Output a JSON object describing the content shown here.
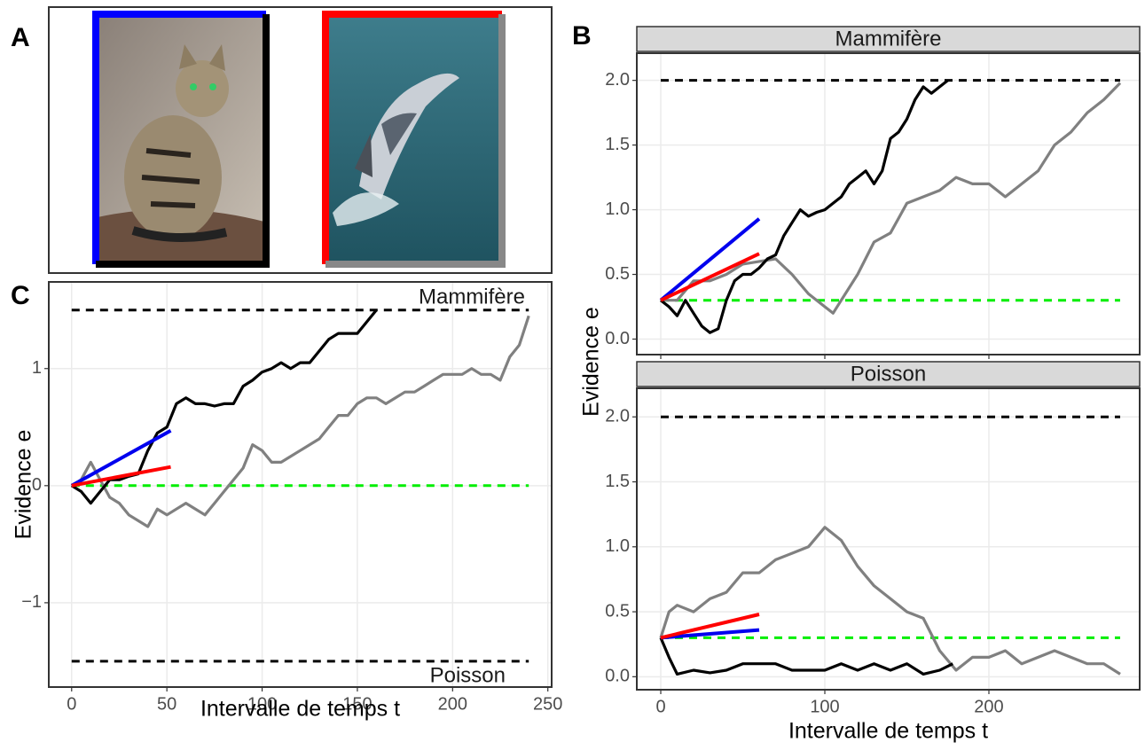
{
  "panel_labels": [
    "A",
    "B",
    "C"
  ],
  "chart_data": [
    {
      "type": "line",
      "y_label": "Evidence e",
      "x_label": "Intervalle de temps t",
      "xlim": [
        -12,
        252
      ],
      "ylim": [
        -1.72,
        1.74
      ],
      "xticks": [
        0,
        50,
        100,
        150,
        200,
        250
      ],
      "yticks": [
        {
          "value": -1,
          "label": "−1"
        },
        0,
        1
      ],
      "grid": true,
      "annotations": [
        "Mammifère",
        "Poisson"
      ],
      "series": [
        {
          "color": "#000000",
          "dash": true,
          "x": [
            0,
            240
          ],
          "values": [
            1.5,
            1.5
          ]
        },
        {
          "color": "#000000",
          "dash": true,
          "x": [
            0,
            240
          ],
          "values": [
            -1.5,
            -1.5
          ]
        },
        {
          "color": "#00ee00",
          "dash": true,
          "x": [
            0,
            240
          ],
          "values": [
            0,
            0
          ]
        },
        {
          "color": "#808080",
          "x": [
            0,
            5,
            10,
            15,
            20,
            25,
            30,
            35,
            40,
            45,
            50,
            55,
            60,
            65,
            70,
            75,
            80,
            85,
            90,
            95,
            100,
            105,
            110,
            115,
            120,
            125,
            130,
            135,
            140,
            145,
            150,
            155,
            160,
            165,
            170,
            175,
            180,
            185,
            190,
            195,
            200,
            205,
            210,
            215,
            220,
            225,
            230,
            235,
            240
          ],
          "values": [
            0,
            0.05,
            0.2,
            0.05,
            -0.1,
            -0.15,
            -0.25,
            -0.3,
            -0.35,
            -0.2,
            -0.25,
            -0.2,
            -0.15,
            -0.2,
            -0.25,
            -0.15,
            -0.05,
            0.05,
            0.15,
            0.35,
            0.3,
            0.2,
            0.2,
            0.25,
            0.3,
            0.35,
            0.4,
            0.5,
            0.6,
            0.6,
            0.7,
            0.75,
            0.75,
            0.7,
            0.75,
            0.8,
            0.8,
            0.85,
            0.9,
            0.95,
            0.95,
            0.95,
            1.0,
            0.95,
            0.95,
            0.9,
            1.1,
            1.2,
            1.45
          ]
        },
        {
          "color": "#000000",
          "x": [
            0,
            5,
            10,
            15,
            20,
            25,
            30,
            35,
            40,
            45,
            50,
            55,
            60,
            65,
            70,
            75,
            80,
            85,
            90,
            95,
            100,
            105,
            110,
            115,
            120,
            125,
            130,
            135,
            140,
            145,
            150,
            155,
            160
          ],
          "values": [
            0,
            -0.05,
            -0.15,
            -0.05,
            0.05,
            0.05,
            0.08,
            0.1,
            0.3,
            0.45,
            0.5,
            0.7,
            0.75,
            0.7,
            0.7,
            0.68,
            0.7,
            0.7,
            0.85,
            0.9,
            0.97,
            1.0,
            1.05,
            1.0,
            1.05,
            1.05,
            1.15,
            1.25,
            1.3,
            1.3,
            1.3,
            1.4,
            1.5
          ]
        },
        {
          "color": "#0000ee",
          "width": 4,
          "x": [
            0,
            52
          ],
          "values": [
            0,
            0.47
          ]
        },
        {
          "color": "#ff0000",
          "width": 4,
          "x": [
            0,
            52
          ],
          "values": [
            0,
            0.16
          ]
        }
      ]
    },
    {
      "type": "line",
      "strip": "Mammifère",
      "y_label": "Evidence e",
      "xlim": [
        -14.6,
        291.9
      ],
      "ylim": [
        -0.12,
        2.21
      ],
      "xticks": [
        0,
        100,
        200
      ],
      "yticks": [
        {
          "value": 0,
          "label": "0.0"
        },
        {
          "value": 0.5,
          "label": "0.5"
        },
        {
          "value": 1,
          "label": "1.0"
        },
        {
          "value": 1.5,
          "label": "1.5"
        },
        {
          "value": 2,
          "label": "2.0"
        }
      ],
      "grid": true,
      "series": [
        {
          "color": "#000000",
          "dash": true,
          "x": [
            0,
            280
          ],
          "values": [
            2,
            2
          ]
        },
        {
          "color": "#00ee00",
          "dash": true,
          "x": [
            0,
            280
          ],
          "values": [
            0.3,
            0.3
          ]
        },
        {
          "color": "#808080",
          "x": [
            0,
            10,
            20,
            30,
            40,
            50,
            60,
            70,
            80,
            90,
            100,
            105,
            110,
            120,
            130,
            140,
            150,
            160,
            170,
            180,
            190,
            200,
            210,
            220,
            230,
            240,
            250,
            260,
            270,
            280
          ],
          "values": [
            0.3,
            0.3,
            0.45,
            0.45,
            0.5,
            0.58,
            0.6,
            0.62,
            0.5,
            0.35,
            0.25,
            0.2,
            0.3,
            0.5,
            0.75,
            0.82,
            1.05,
            1.1,
            1.15,
            1.25,
            1.2,
            1.2,
            1.1,
            1.2,
            1.3,
            1.5,
            1.6,
            1.75,
            1.85,
            1.98
          ]
        },
        {
          "color": "#000000",
          "x": [
            0,
            5,
            10,
            15,
            20,
            25,
            30,
            35,
            40,
            45,
            50,
            55,
            60,
            65,
            70,
            75,
            80,
            85,
            90,
            95,
            100,
            105,
            110,
            115,
            120,
            125,
            130,
            135,
            140,
            145,
            150,
            155,
            160,
            165,
            170,
            175
          ],
          "values": [
            0.3,
            0.25,
            0.18,
            0.3,
            0.2,
            0.1,
            0.05,
            0.08,
            0.3,
            0.45,
            0.5,
            0.5,
            0.55,
            0.62,
            0.65,
            0.8,
            0.9,
            1.0,
            0.95,
            0.98,
            1.0,
            1.05,
            1.1,
            1.2,
            1.25,
            1.3,
            1.2,
            1.3,
            1.55,
            1.6,
            1.7,
            1.85,
            1.95,
            1.9,
            1.95,
            2.0
          ]
        },
        {
          "color": "#0000ee",
          "width": 4,
          "x": [
            0,
            60
          ],
          "values": [
            0.3,
            0.93
          ]
        },
        {
          "color": "#ff0000",
          "width": 4,
          "x": [
            0,
            60
          ],
          "values": [
            0.3,
            0.66
          ]
        }
      ]
    },
    {
      "type": "line",
      "strip": "Poisson",
      "x_label": "Intervalle de temps t",
      "xlim": [
        -14.6,
        291.9
      ],
      "ylim": [
        -0.1,
        2.22
      ],
      "xticks": [
        0,
        100,
        200
      ],
      "yticks": [
        {
          "value": 0,
          "label": "0.0"
        },
        {
          "value": 0.5,
          "label": "0.5"
        },
        {
          "value": 1,
          "label": "1.0"
        },
        {
          "value": 1.5,
          "label": "1.5"
        },
        {
          "value": 2,
          "label": "2.0"
        }
      ],
      "grid": true,
      "series": [
        {
          "color": "#000000",
          "dash": true,
          "x": [
            0,
            280
          ],
          "values": [
            2,
            2
          ]
        },
        {
          "color": "#00ee00",
          "dash": true,
          "x": [
            0,
            280
          ],
          "values": [
            0.3,
            0.3
          ]
        },
        {
          "color": "#808080",
          "x": [
            0,
            5,
            10,
            20,
            30,
            40,
            50,
            60,
            70,
            80,
            90,
            100,
            110,
            120,
            130,
            140,
            150,
            160,
            170,
            180,
            190,
            200,
            210,
            220,
            230,
            240,
            250,
            260,
            270,
            280
          ],
          "values": [
            0.3,
            0.5,
            0.55,
            0.5,
            0.6,
            0.65,
            0.8,
            0.8,
            0.9,
            0.95,
            1.0,
            1.15,
            1.05,
            0.85,
            0.7,
            0.6,
            0.5,
            0.45,
            0.2,
            0.05,
            0.15,
            0.15,
            0.2,
            0.1,
            0.15,
            0.2,
            0.15,
            0.1,
            0.1,
            0.02
          ]
        },
        {
          "color": "#000000",
          "x": [
            0,
            5,
            10,
            20,
            30,
            40,
            50,
            60,
            70,
            80,
            90,
            100,
            110,
            120,
            130,
            140,
            150,
            160,
            170,
            178
          ],
          "values": [
            0.3,
            0.15,
            0.02,
            0.05,
            0.03,
            0.05,
            0.1,
            0.1,
            0.1,
            0.05,
            0.05,
            0.05,
            0.1,
            0.05,
            0.1,
            0.05,
            0.1,
            0.02,
            0.05,
            0.1
          ]
        },
        {
          "color": "#0000ee",
          "width": 4,
          "x": [
            0,
            60
          ],
          "values": [
            0.3,
            0.36
          ]
        },
        {
          "color": "#ff0000",
          "width": 4,
          "x": [
            0,
            60
          ],
          "values": [
            0.3,
            0.48
          ]
        }
      ]
    }
  ]
}
